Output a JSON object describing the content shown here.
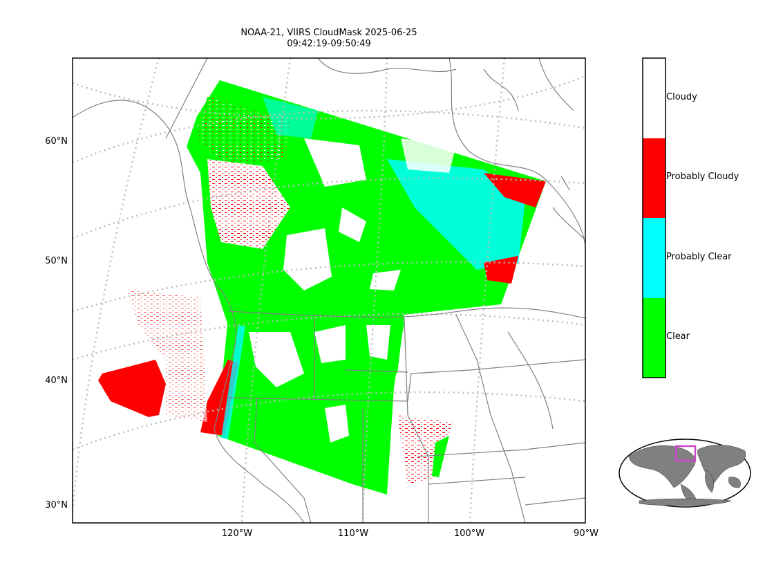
{
  "title": {
    "line1": "NOAA-21, VIIRS CloudMask 2025-06-25",
    "line2": "09:42:19-09:50:49"
  },
  "map": {
    "lat_labels": [
      "60°N",
      "50°N",
      "40°N",
      "30°N"
    ],
    "lon_labels": [
      "120°W",
      "110°W",
      "100°W",
      "90°W"
    ],
    "gridline_style": "dotted",
    "coastline_color": "#808080"
  },
  "legend": {
    "categories": [
      {
        "label": "Cloudy",
        "color": "#ffffff"
      },
      {
        "label": "Probably Cloudy",
        "color": "#ff0000"
      },
      {
        "label": "Probably Clear",
        "color": "#00ffff"
      },
      {
        "label": "Clear",
        "color": "#00ff00"
      }
    ]
  },
  "inset": {
    "land_color": "#808080",
    "highlight_color": "#cc44cc"
  }
}
